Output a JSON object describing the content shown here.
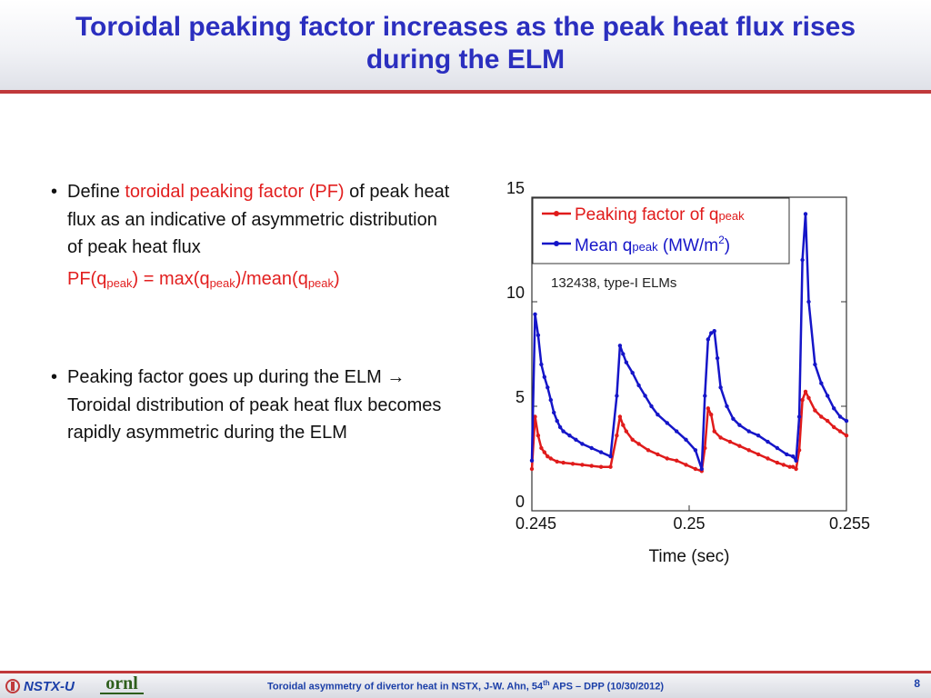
{
  "title_line1": "Toroidal peaking factor increases as the peak heat flux rises",
  "title_line2": "during the ELM",
  "bullets": {
    "b1_pre": "Define ",
    "b1_red": "toroidal peaking factor (PF)",
    "b1_post": " of peak heat flux as an indicative of asymmetric distribution of peak heat flux",
    "formula": {
      "pf_open": "PF(q",
      "sub1": "peak",
      "mid1": ") = max(q",
      "sub2": "peak",
      "mid2": ")/mean(q",
      "sub3": "peak",
      "close": ")"
    },
    "b2_pre": "Peaking factor goes up during the ELM ",
    "b2_arrow": "→",
    "b2_post": " Toroidal distribution of peak heat flux becomes rapidly asymmetric during the ELM"
  },
  "bullet_symbol": "•",
  "chart_data": {
    "type": "line",
    "xlabel": "Time (sec)",
    "ylabel": "",
    "xlim": [
      0.245,
      0.255
    ],
    "ylim": [
      0,
      15
    ],
    "xticks": [
      0.245,
      0.25,
      0.255
    ],
    "xtick_labels": [
      "0.245",
      "0.25",
      "0.255"
    ],
    "yticks": [
      0,
      5,
      10,
      15
    ],
    "ytick_labels": [
      "0",
      "5",
      "10",
      "15"
    ],
    "grid": false,
    "legend_position": "top-left",
    "annotation": "132438, type-I ELMs",
    "series": [
      {
        "name": "Peaking factor of q",
        "name_sub": "peak",
        "color": "#e01b1b",
        "x": [
          0.245,
          0.2451,
          0.2452,
          0.2453,
          0.2454,
          0.2455,
          0.2456,
          0.2458,
          0.246,
          0.2463,
          0.2466,
          0.2469,
          0.2472,
          0.2475,
          0.2477,
          0.2478,
          0.2479,
          0.248,
          0.2482,
          0.2484,
          0.2487,
          0.249,
          0.2493,
          0.2496,
          0.2499,
          0.2502,
          0.2504,
          0.2505,
          0.2506,
          0.2507,
          0.2508,
          0.251,
          0.2513,
          0.2516,
          0.2519,
          0.2522,
          0.2525,
          0.2528,
          0.253,
          0.2532,
          0.2533,
          0.2534,
          0.2535,
          0.2536,
          0.2537,
          0.2538,
          0.254,
          0.2542,
          0.2544,
          0.2546,
          0.2548,
          0.255
        ],
        "y": [
          2.0,
          4.5,
          3.6,
          3.0,
          2.8,
          2.6,
          2.5,
          2.35,
          2.3,
          2.25,
          2.2,
          2.15,
          2.1,
          2.1,
          3.6,
          4.5,
          4.1,
          3.8,
          3.4,
          3.2,
          2.9,
          2.7,
          2.5,
          2.4,
          2.2,
          2.0,
          1.9,
          3.0,
          4.9,
          4.6,
          3.8,
          3.5,
          3.3,
          3.1,
          2.9,
          2.7,
          2.5,
          2.3,
          2.2,
          2.1,
          2.1,
          2.0,
          2.9,
          5.3,
          5.7,
          5.4,
          4.8,
          4.5,
          4.3,
          4.0,
          3.8,
          3.6
        ]
      },
      {
        "name": "Mean q",
        "name_sub": "peak",
        "name_suffix": " (MW/m",
        "name_sup": "2",
        "name_end": ")",
        "color": "#1515c8",
        "x": [
          0.245,
          0.2451,
          0.2452,
          0.2453,
          0.2454,
          0.2455,
          0.2456,
          0.2457,
          0.2458,
          0.2459,
          0.246,
          0.2462,
          0.2464,
          0.2466,
          0.2469,
          0.2472,
          0.2475,
          0.2477,
          0.2478,
          0.2479,
          0.248,
          0.2482,
          0.2484,
          0.2486,
          0.2488,
          0.249,
          0.2493,
          0.2496,
          0.2499,
          0.2502,
          0.2504,
          0.2505,
          0.2506,
          0.2507,
          0.2508,
          0.2509,
          0.251,
          0.2512,
          0.2514,
          0.2516,
          0.2519,
          0.2522,
          0.2525,
          0.2528,
          0.2531,
          0.2533,
          0.2534,
          0.2535,
          0.2536,
          0.2537,
          0.2538,
          0.254,
          0.2542,
          0.2544,
          0.2546,
          0.2548,
          0.255
        ],
        "y": [
          2.4,
          9.4,
          8.4,
          7.0,
          6.4,
          5.9,
          5.3,
          4.7,
          4.3,
          4.0,
          3.8,
          3.6,
          3.4,
          3.2,
          3.0,
          2.8,
          2.6,
          5.5,
          7.9,
          7.5,
          7.1,
          6.6,
          6.0,
          5.5,
          5.0,
          4.6,
          4.2,
          3.8,
          3.4,
          2.9,
          2.0,
          5.5,
          8.2,
          8.5,
          8.6,
          7.3,
          5.9,
          5.0,
          4.4,
          4.1,
          3.8,
          3.6,
          3.3,
          3.0,
          2.7,
          2.6,
          2.4,
          4.5,
          12.0,
          14.2,
          10.0,
          7.0,
          6.1,
          5.5,
          4.9,
          4.5,
          4.3
        ]
      }
    ]
  },
  "footer": {
    "nstx_label": "NSTX-U",
    "ornl_label": "ornl",
    "text_pre": "Toroidal asymmetry of divertor heat in NSTX, J-W. Ahn, 54",
    "text_sup": "th",
    "text_post": " APS – DPP (10/30/2012)",
    "page": "8"
  }
}
